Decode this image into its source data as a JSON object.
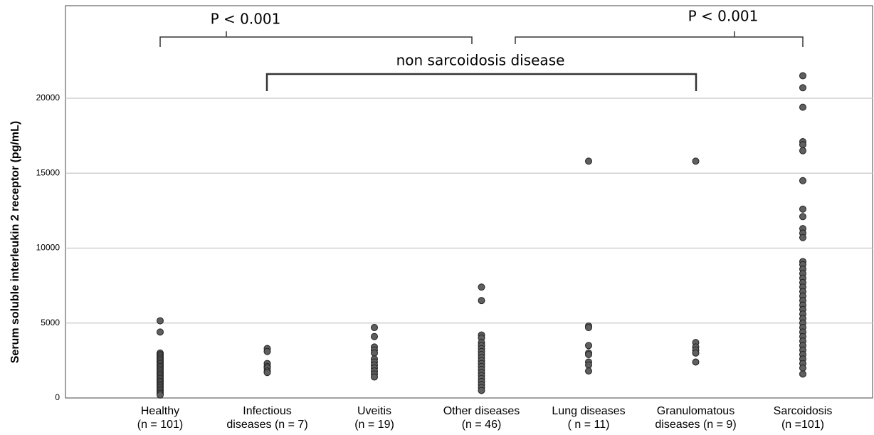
{
  "chart_data": {
    "type": "strip",
    "y_label": "Serum soluble interleukin 2 receptor (pg/mL)",
    "categories": [
      [
        "Healthy",
        "(n = 101)"
      ],
      [
        "Infectious",
        "diseases (n = 7)"
      ],
      [
        "Uveitis",
        "(n = 19)"
      ],
      [
        "Other diseases",
        "(n = 46)"
      ],
      [
        "Lung diseases",
        "( n = 11)"
      ],
      [
        "Granulomatous",
        "diseases (n = 9)"
      ],
      [
        "Sarcoidosis",
        "(n =101)"
      ]
    ],
    "values": [
      [
        5150,
        4400,
        3000,
        2900,
        2800,
        2700,
        2600,
        2500,
        2400,
        2300,
        2200,
        2100,
        2000,
        1900,
        1800,
        1700,
        1600,
        1500,
        1400,
        1300,
        1200,
        1100,
        1000,
        900,
        800,
        700,
        600,
        500,
        400,
        300,
        200
      ],
      [
        3300,
        3100,
        2300,
        2100,
        2000,
        1800,
        1700
      ],
      [
        4700,
        4100,
        3400,
        3200,
        3000,
        2600,
        2400,
        2200,
        2000,
        1800,
        1600,
        1400
      ],
      [
        7400,
        6500,
        4200,
        4000,
        3700,
        3500,
        3300,
        3100,
        2900,
        2700,
        2500,
        2300,
        2100,
        1900,
        1700,
        1500,
        1300,
        1100,
        900,
        700,
        500
      ],
      [
        15800,
        4800,
        4700,
        3500,
        3000,
        2900,
        2400,
        2200,
        1800
      ],
      [
        15800,
        3700,
        3400,
        3200,
        3000,
        2400
      ],
      [
        21500,
        20700,
        19400,
        17100,
        16900,
        16500,
        14500,
        12600,
        12100,
        11300,
        11000,
        10700,
        9100,
        8900,
        8600,
        8300,
        8000,
        7700,
        7400,
        7100,
        6800,
        6500,
        6200,
        5900,
        5600,
        5300,
        5000,
        4700,
        4400,
        4100,
        3800,
        3500,
        3200,
        2900,
        2600,
        2300,
        2000,
        1600
      ]
    ],
    "color": "#5f5f5f",
    "ylim": [
      0,
      26175
    ],
    "yticks": [
      0,
      5000,
      10000,
      15000,
      20000
    ],
    "grid": true,
    "annotations": [
      "P < 0.001",
      "P < 0.001",
      "non sarcoidosis disease"
    ]
  }
}
